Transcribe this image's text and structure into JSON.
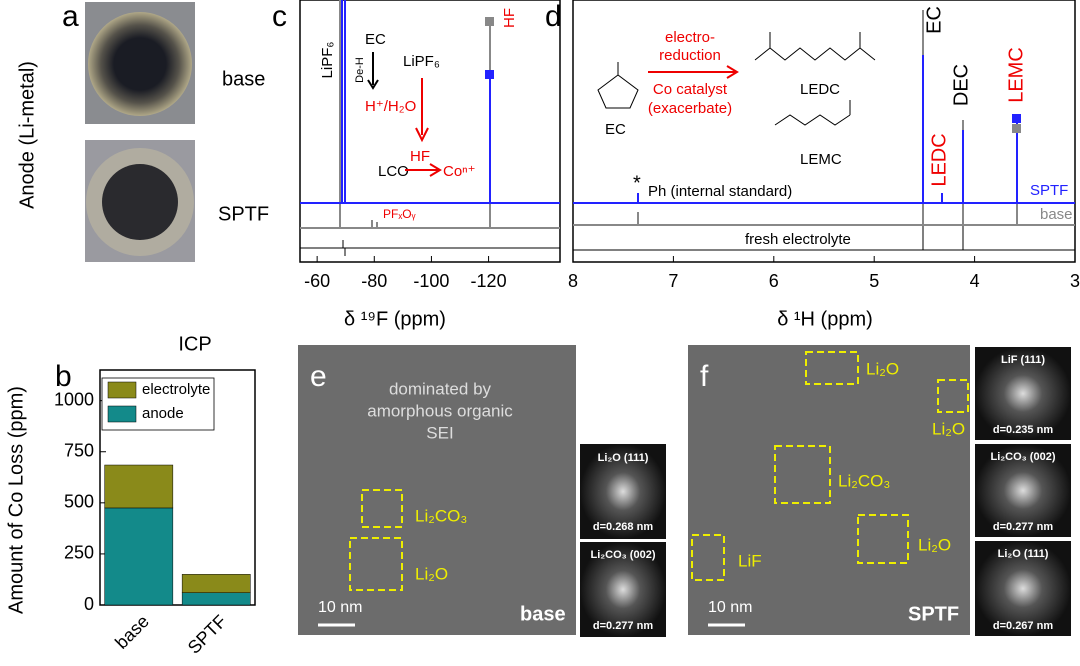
{
  "panel_a": {
    "label": "a",
    "ylabel": "Anode (Li-metal)",
    "samples": [
      "base",
      "SPTF"
    ]
  },
  "chart_data": {
    "type": "bar",
    "stacked": true,
    "label": "b",
    "title": "ICP",
    "ylabel": "Amount of Co Loss (ppm)",
    "categories": [
      "base",
      "SPTF"
    ],
    "series": [
      {
        "name": "anode",
        "color": "#138a8a",
        "values": [
          475,
          60
        ]
      },
      {
        "name": "electrolyte",
        "color": "#8a8a1a",
        "values": [
          210,
          90
        ]
      }
    ],
    "ylim": [
      0,
      1150
    ],
    "yticks": [
      0,
      250,
      500,
      750,
      1000
    ],
    "legend": "upper-left"
  },
  "panel_c": {
    "label": "c",
    "xlabel": "δ ¹⁹F (ppm)",
    "xlim": [
      -54,
      -145
    ],
    "xticks": [
      -60,
      -80,
      -100,
      -120
    ],
    "annotations": {
      "lipf6_peak": "LiPF₆",
      "ec": "EC",
      "deh": "De-H",
      "lipf6": "LiPF₆",
      "hplus": "H⁺/H₂O",
      "hf_arrow": "HF",
      "lco": "LCO",
      "con": "Coⁿ⁺",
      "pfxoy": "PFₓOᵧ",
      "hf_peak": "HF"
    }
  },
  "panel_d": {
    "label": "d",
    "xlabel": "δ ¹H (ppm)",
    "xlim": [
      8,
      3
    ],
    "xticks": [
      8,
      7,
      6,
      5,
      4,
      3
    ],
    "annotations": {
      "ec_mol": "EC",
      "er1": "electro-",
      "er2": "reduction",
      "cc1": "Co catalyst",
      "cc2": "(exacerbate)",
      "ledc": "LEDC",
      "lemc": "LEMC",
      "ec_peak": "EC",
      "dec_peak": "DEC",
      "ledc_peak": "LEDC",
      "lemc_peak": "LEMC",
      "star": "*",
      "ph": "Ph (internal standard)",
      "sptf": "SPTF",
      "base": "base",
      "fresh": "fresh electrolyte"
    }
  },
  "panel_e": {
    "label": "e",
    "caption": [
      "dominated by",
      "amorphous organic",
      "SEI"
    ],
    "regions": [
      "Li₂CO₃",
      "Li₂O"
    ],
    "scale": "10 nm",
    "sample": "base",
    "insets": [
      {
        "title": "Li₂O (111)",
        "d": "d=0.268 nm"
      },
      {
        "title": "Li₂CO₃ (002)",
        "d": "d=0.277 nm"
      }
    ]
  },
  "panel_f": {
    "label": "f",
    "regions": [
      "Li₂O",
      "Li₂O",
      "Li₂CO₃",
      "Li₂O",
      "LiF"
    ],
    "scale": "10 nm",
    "sample": "SPTF",
    "insets": [
      {
        "title": "LiF (111)",
        "d": "d=0.235 nm"
      },
      {
        "title": "Li₂CO₃ (002)",
        "d": "d=0.277 nm"
      },
      {
        "title": "Li₂O (111)",
        "d": "d=0.267 nm"
      }
    ]
  }
}
